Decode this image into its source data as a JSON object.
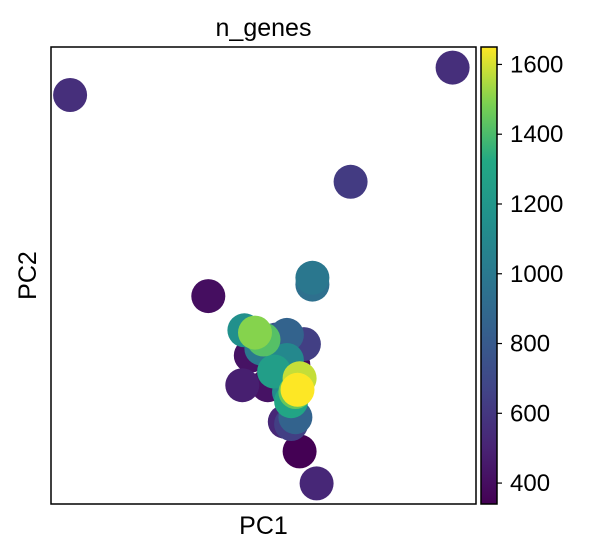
{
  "chart_data": {
    "type": "scatter",
    "title": "n_genes",
    "xlabel": "PC1",
    "ylabel": "PC2",
    "x_ticks_shown": false,
    "y_ticks_shown": false,
    "xlim": [
      0,
      100
    ],
    "ylim": [
      0,
      100
    ],
    "colorbar": {
      "colormap": "viridis",
      "min": 340,
      "max": 1650,
      "ticks": [
        400,
        600,
        800,
        1000,
        1200,
        1400,
        1600
      ],
      "tick_labels": [
        "400",
        "600",
        "800",
        "1000",
        "1200",
        "1400",
        "1600"
      ]
    },
    "points": [
      {
        "x": 4.5,
        "y": 89.5,
        "value": 560
      },
      {
        "x": 94.5,
        "y": 95.5,
        "value": 560
      },
      {
        "x": 70.5,
        "y": 70.5,
        "value": 620
      },
      {
        "x": 37.0,
        "y": 45.5,
        "value": 400
      },
      {
        "x": 61.5,
        "y": 48.0,
        "value": 940
      },
      {
        "x": 61.5,
        "y": 49.5,
        "value": 990
      },
      {
        "x": 47.0,
        "y": 32.5,
        "value": 420
      },
      {
        "x": 57.0,
        "y": 30.5,
        "value": 380
      },
      {
        "x": 45.0,
        "y": 26.0,
        "value": 480
      },
      {
        "x": 51.0,
        "y": 26.0,
        "value": 420
      },
      {
        "x": 55.5,
        "y": 37.0,
        "value": 860
      },
      {
        "x": 59.5,
        "y": 35.0,
        "value": 640
      },
      {
        "x": 53.0,
        "y": 36.0,
        "value": 750
      },
      {
        "x": 45.5,
        "y": 38.0,
        "value": 1150
      },
      {
        "x": 49.5,
        "y": 34.0,
        "value": 1000
      },
      {
        "x": 55.5,
        "y": 31.5,
        "value": 1100
      },
      {
        "x": 48.0,
        "y": 37.5,
        "value": 1500
      },
      {
        "x": 50.0,
        "y": 36.0,
        "value": 1420
      },
      {
        "x": 52.5,
        "y": 29.0,
        "value": 1250
      },
      {
        "x": 56.0,
        "y": 24.5,
        "value": 1120
      },
      {
        "x": 56.5,
        "y": 22.5,
        "value": 1300
      },
      {
        "x": 58.5,
        "y": 27.5,
        "value": 1580
      },
      {
        "x": 57.5,
        "y": 24.5,
        "value": 1450
      },
      {
        "x": 58.0,
        "y": 25.0,
        "value": 1650
      },
      {
        "x": 55.0,
        "y": 18.0,
        "value": 520
      },
      {
        "x": 56.5,
        "y": 17.5,
        "value": 640
      },
      {
        "x": 57.5,
        "y": 19.0,
        "value": 860
      },
      {
        "x": 58.5,
        "y": 11.5,
        "value": 340
      },
      {
        "x": 62.5,
        "y": 4.5,
        "value": 520
      }
    ]
  }
}
